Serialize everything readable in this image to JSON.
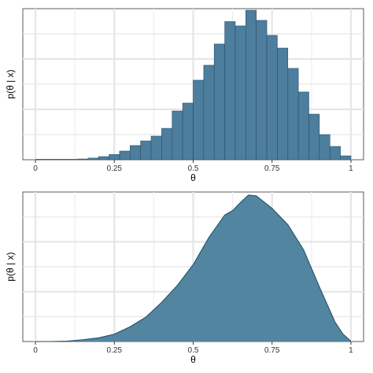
{
  "chart_data": [
    {
      "type": "bar",
      "panel": "histogram",
      "xlabel": "θ",
      "ylabel": "p(θ | x)",
      "xlim": [
        -0.04,
        1.04
      ],
      "xticks": [
        0,
        0.25,
        0.5,
        0.75,
        1
      ],
      "xtick_labels": [
        "0",
        "0.25",
        "0.5",
        "0.75",
        "1"
      ],
      "y_tick_labels_shown": false,
      "grid": true,
      "bin_width": 0.0333,
      "bins": [
        {
          "x": 0.0167,
          "y": 0.003
        },
        {
          "x": 0.05,
          "y": 0.003
        },
        {
          "x": 0.0833,
          "y": 0.003
        },
        {
          "x": 0.1167,
          "y": 0.003
        },
        {
          "x": 0.15,
          "y": 0.005
        },
        {
          "x": 0.1833,
          "y": 0.011
        },
        {
          "x": 0.2167,
          "y": 0.021
        },
        {
          "x": 0.25,
          "y": 0.035
        },
        {
          "x": 0.2833,
          "y": 0.058
        },
        {
          "x": 0.3167,
          "y": 0.095
        },
        {
          "x": 0.35,
          "y": 0.126
        },
        {
          "x": 0.3833,
          "y": 0.158
        },
        {
          "x": 0.4167,
          "y": 0.21
        },
        {
          "x": 0.45,
          "y": 0.326
        },
        {
          "x": 0.4833,
          "y": 0.379
        },
        {
          "x": 0.5167,
          "y": 0.532
        },
        {
          "x": 0.55,
          "y": 0.632
        },
        {
          "x": 0.5833,
          "y": 0.774
        },
        {
          "x": 0.6167,
          "y": 0.924
        },
        {
          "x": 0.65,
          "y": 0.895
        },
        {
          "x": 0.6833,
          "y": 1.0
        },
        {
          "x": 0.7167,
          "y": 0.932
        },
        {
          "x": 0.75,
          "y": 0.832
        },
        {
          "x": 0.7833,
          "y": 0.747
        },
        {
          "x": 0.8167,
          "y": 0.611
        },
        {
          "x": 0.85,
          "y": 0.453
        },
        {
          "x": 0.8833,
          "y": 0.305
        },
        {
          "x": 0.9167,
          "y": 0.168
        },
        {
          "x": 0.95,
          "y": 0.089
        },
        {
          "x": 0.9833,
          "y": 0.026
        }
      ],
      "colors": {
        "fill": "#4d7e9e",
        "stroke": "#2a4f66"
      }
    },
    {
      "type": "area",
      "panel": "density",
      "xlabel": "θ",
      "ylabel": "p(θ | x)",
      "xlim": [
        -0.04,
        1.04
      ],
      "xticks": [
        0,
        0.25,
        0.5,
        0.75,
        1
      ],
      "xtick_labels": [
        "0",
        "0.25",
        "0.5",
        "0.75",
        "1"
      ],
      "y_tick_labels_shown": false,
      "grid": true,
      "x": [
        0,
        0.05,
        0.1,
        0.15,
        0.2,
        0.25,
        0.3,
        0.35,
        0.4,
        0.45,
        0.5,
        0.55,
        0.6,
        0.625,
        0.65,
        0.675,
        0.7,
        0.75,
        0.8,
        0.85,
        0.9,
        0.95,
        0.975,
        1
      ],
      "y": [
        0.0,
        0.0,
        0.003,
        0.012,
        0.025,
        0.05,
        0.1,
        0.165,
        0.265,
        0.38,
        0.52,
        0.705,
        0.855,
        0.885,
        0.94,
        0.99,
        0.985,
        0.9,
        0.79,
        0.62,
        0.37,
        0.13,
        0.05,
        0.003
      ],
      "colors": {
        "fill": "#52859f",
        "stroke": "#1f4a66"
      }
    }
  ]
}
